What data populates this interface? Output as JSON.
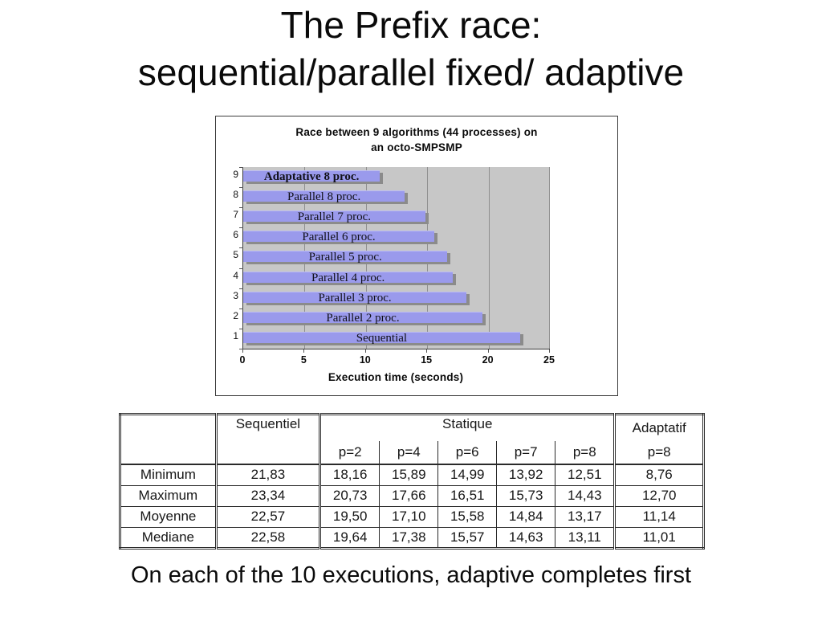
{
  "slide": {
    "title_line1": "The Prefix race:",
    "title_line2": "sequential/parallel fixed/ adaptive",
    "caption": "On each of the 10 executions, adaptive completes first"
  },
  "chart_data": {
    "type": "bar",
    "orientation": "horizontal",
    "title": "Race between 9 algorithms (44 processes) on an octo-SMPSMP",
    "title_line1": "Race between 9 algorithms (44 processes) on",
    "title_line2": "an octo-SMPSMP",
    "xlabel": "Execution time (seconds)",
    "xlim": [
      0,
      25
    ],
    "xticks": [
      0,
      5,
      10,
      15,
      20,
      25
    ],
    "grid": "vertical gridlines at each x tick",
    "legend": "none",
    "bars": [
      {
        "category": 9,
        "label": "Adaptative 8 proc.",
        "value": 11.14,
        "emphasis": true
      },
      {
        "category": 8,
        "label": "Parallel 8 proc.",
        "value": 13.17,
        "emphasis": false
      },
      {
        "category": 7,
        "label": "Parallel 7 proc.",
        "value": 14.84,
        "emphasis": false
      },
      {
        "category": 6,
        "label": "Parallel 6 proc.",
        "value": 15.58,
        "emphasis": false
      },
      {
        "category": 5,
        "label": "Parallel 5 proc.",
        "value": 16.65,
        "emphasis": false
      },
      {
        "category": 4,
        "label": "Parallel 4 proc.",
        "value": 17.1,
        "emphasis": false
      },
      {
        "category": 3,
        "label": "Parallel 3 proc.",
        "value": 18.2,
        "emphasis": false
      },
      {
        "category": 2,
        "label": "Parallel 2 proc.",
        "value": 19.5,
        "emphasis": false
      },
      {
        "category": 1,
        "label": "Sequential",
        "value": 22.57,
        "emphasis": false
      }
    ],
    "colors": {
      "bar": "#9a9aec",
      "bar_shadow": "#8b8b8b",
      "plot_bg": "#c7c7c7",
      "gridline": "#8f8f8f"
    }
  },
  "table": {
    "corner": "",
    "group_sequentiel": "Sequentiel",
    "group_statique": "Statique",
    "group_adaptatif": "Adaptatif",
    "p_headers": [
      "p=2",
      "p=4",
      "p=6",
      "p=7",
      "p=8"
    ],
    "adaptatif_p": "p=8",
    "rows": [
      {
        "label": "Minimum",
        "sequentiel": "21,83",
        "statique": [
          "18,16",
          "15,89",
          "14,99",
          "13,92",
          "12,51"
        ],
        "adaptatif": "8,76"
      },
      {
        "label": "Maximum",
        "sequentiel": "23,34",
        "statique": [
          "20,73",
          "17,66",
          "16,51",
          "15,73",
          "14,43"
        ],
        "adaptatif": "12,70"
      },
      {
        "label": "Moyenne",
        "sequentiel": "22,57",
        "statique": [
          "19,50",
          "17,10",
          "15,58",
          "14,84",
          "13,17"
        ],
        "adaptatif": "11,14"
      },
      {
        "label": "Mediane",
        "sequentiel": "22,58",
        "statique": [
          "19,64",
          "17,38",
          "15,57",
          "14,63",
          "13,11"
        ],
        "adaptatif": "11,01"
      }
    ]
  }
}
